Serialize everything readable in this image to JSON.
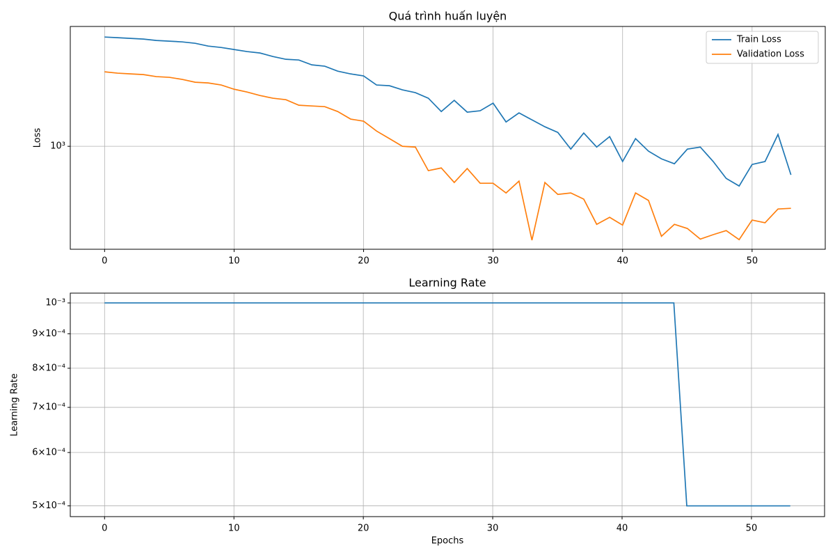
{
  "chart_data": [
    {
      "type": "line",
      "title": "Quá trình huấn luyện",
      "ylabel": "Loss",
      "log_y": true,
      "grid": true,
      "legend": "upper right",
      "x": [
        0,
        1,
        2,
        3,
        4,
        5,
        6,
        7,
        8,
        9,
        10,
        11,
        12,
        13,
        14,
        15,
        16,
        17,
        18,
        19,
        20,
        21,
        22,
        23,
        24,
        25,
        26,
        27,
        28,
        29,
        30,
        31,
        32,
        33,
        34,
        35,
        36,
        37,
        38,
        39,
        40,
        41,
        42,
        43,
        44,
        45,
        46,
        47,
        48,
        49,
        50,
        51,
        52,
        53
      ],
      "series": [
        {
          "name": "Train Loss",
          "color": "#1f77b4",
          "values": [
            2031,
            2022,
            2013,
            2004,
            1986,
            1977,
            1968,
            1950,
            1915,
            1898,
            1873,
            1848,
            1831,
            1790,
            1758,
            1750,
            1696,
            1681,
            1628,
            1599,
            1578,
            1488,
            1481,
            1442,
            1416,
            1366,
            1253,
            1347,
            1248,
            1259,
            1323,
            1171,
            1242,
            1187,
            1135,
            1094,
            982,
            1090,
            995,
            1065,
            906,
            1051,
            969,
            922,
            893,
            982,
            995,
            906,
            812,
            773,
            889,
            906,
            1080,
            831
          ]
        },
        {
          "name": "Validation Loss",
          "color": "#ff7f0e",
          "values": [
            1621,
            1607,
            1599,
            1592,
            1571,
            1564,
            1543,
            1515,
            1508,
            1488,
            1448,
            1422,
            1390,
            1366,
            1353,
            1305,
            1299,
            1293,
            1253,
            1193,
            1177,
            1104,
            1051,
            1000,
            995,
            854,
            869,
            791,
            866,
            787,
            787,
            739,
            798,
            544,
            791,
            732,
            739,
            710,
            603,
            631,
            600,
            739,
            704,
            558,
            603,
            587,
            548,
            564,
            579,
            546,
            620,
            609,
            666,
            669
          ]
        }
      ],
      "xlim": [
        -2.65,
        55.65
      ],
      "xticks": [
        0,
        10,
        20,
        30,
        40,
        50
      ],
      "ylim": [
        513,
        2175
      ],
      "yticks": [
        {
          "value": 1000,
          "label": "10³"
        }
      ]
    },
    {
      "type": "line",
      "title": "Learning Rate",
      "xlabel": "Epochs",
      "ylabel": "Learning Rate",
      "log_y": true,
      "grid": true,
      "x": [
        0,
        1,
        2,
        3,
        4,
        5,
        6,
        7,
        8,
        9,
        10,
        11,
        12,
        13,
        14,
        15,
        16,
        17,
        18,
        19,
        20,
        21,
        22,
        23,
        24,
        25,
        26,
        27,
        28,
        29,
        30,
        31,
        32,
        33,
        34,
        35,
        36,
        37,
        38,
        39,
        40,
        41,
        42,
        43,
        44,
        45,
        46,
        47,
        48,
        49,
        50,
        51,
        52,
        53
      ],
      "series": [
        {
          "color": "#1f77b4",
          "values": [
            0.001,
            0.001,
            0.001,
            0.001,
            0.001,
            0.001,
            0.001,
            0.001,
            0.001,
            0.001,
            0.001,
            0.001,
            0.001,
            0.001,
            0.001,
            0.001,
            0.001,
            0.001,
            0.001,
            0.001,
            0.001,
            0.001,
            0.001,
            0.001,
            0.001,
            0.001,
            0.001,
            0.001,
            0.001,
            0.001,
            0.001,
            0.001,
            0.001,
            0.001,
            0.001,
            0.001,
            0.001,
            0.001,
            0.001,
            0.001,
            0.001,
            0.001,
            0.001,
            0.001,
            0.001,
            0.0005,
            0.0005,
            0.0005,
            0.0005,
            0.0005,
            0.0005,
            0.0005,
            0.0005,
            0.0005
          ]
        }
      ],
      "xlim": [
        -2.65,
        55.65
      ],
      "xticks": [
        0,
        10,
        20,
        30,
        40,
        50
      ],
      "ylim": [
        0.000482,
        0.001034
      ],
      "yticks": [
        {
          "value": 0.0005,
          "label": "5×10⁻⁴"
        },
        {
          "value": 0.0006,
          "label": "6×10⁻⁴"
        },
        {
          "value": 0.0007,
          "label": "7×10⁻⁴"
        },
        {
          "value": 0.0008,
          "label": "8×10⁻⁴"
        },
        {
          "value": 0.0009,
          "label": "9×10⁻⁴"
        },
        {
          "value": 0.001,
          "label": "10⁻³"
        }
      ]
    }
  ]
}
